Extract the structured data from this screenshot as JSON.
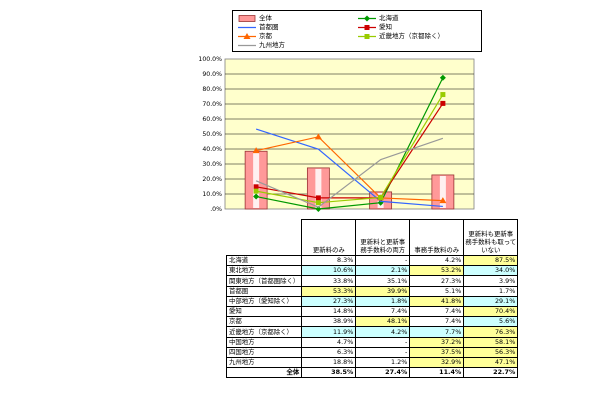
{
  "chart_data": {
    "type": "line",
    "categories": [
      "更新料のみ",
      "更新料と更新事務手数料の両方",
      "事務手数料のみ",
      "更新料も更新事務手数料も取っていない"
    ],
    "ylim": [
      0,
      100
    ],
    "yticks": [
      "100.0%",
      "90.0%",
      "80.0%",
      "70.0%",
      "60.0%",
      "50.0%",
      "40.0%",
      "30.0%",
      "20.0%",
      "10.0%",
      ".0%"
    ],
    "grid": true,
    "legend_position": "top",
    "bar_series": {
      "name": "全体",
      "values": [
        38.5,
        27.4,
        11.4,
        22.7
      ],
      "color": "#ff9999"
    },
    "series": [
      {
        "name": "北海道",
        "values": [
          8.3,
          0,
          4.2,
          87.5
        ],
        "color": "#009900",
        "marker": "diamond"
      },
      {
        "name": "首都圏",
        "values": [
          53.3,
          39.9,
          5.1,
          1.7
        ],
        "color": "#3366ff",
        "marker": "none"
      },
      {
        "name": "愛知",
        "values": [
          14.8,
          7.4,
          7.4,
          70.4
        ],
        "color": "#cc0000",
        "marker": "square"
      },
      {
        "name": "京都",
        "values": [
          38.9,
          48.1,
          7.4,
          5.6
        ],
        "color": "#ff6600",
        "marker": "triangle"
      },
      {
        "name": "近畿地方（京都除く）",
        "values": [
          11.9,
          4.2,
          7.7,
          76.3
        ],
        "color": "#99cc00",
        "marker": "square"
      },
      {
        "name": "九州地方",
        "values": [
          18.8,
          1.2,
          32.9,
          47.1
        ],
        "color": "#999999",
        "marker": "none"
      }
    ]
  },
  "table": {
    "headers": [
      "更新料のみ",
      "更新料と更新事務手数料の両方",
      "事務手数料のみ",
      "更新料も更新事務手数料も取っていない"
    ],
    "rows": [
      {
        "label": "北海道",
        "cells": [
          "8.3%",
          "-",
          "4.2%",
          "87.5%"
        ],
        "colors": [
          "wht",
          "wht",
          "wht",
          "yel"
        ]
      },
      {
        "label": "東北地方",
        "cells": [
          "10.6%",
          "2.1%",
          "53.2%",
          "34.0%"
        ],
        "colors": [
          "cyan",
          "cyan",
          "yel",
          "cyan"
        ]
      },
      {
        "label": "関東地方（首都圏除く）",
        "cells": [
          "33.8%",
          "35.1%",
          "27.3%",
          "3.9%"
        ],
        "colors": [
          "wht",
          "wht",
          "wht",
          "wht"
        ]
      },
      {
        "label": "首都圏",
        "cells": [
          "53.3%",
          "39.9%",
          "5.1%",
          "1.7%"
        ],
        "colors": [
          "yel",
          "yel",
          "wht",
          "wht"
        ]
      },
      {
        "label": "中部地方（愛知除く）",
        "cells": [
          "27.3%",
          "1.8%",
          "41.8%",
          "29.1%"
        ],
        "colors": [
          "cyan",
          "cyan",
          "yel",
          "cyan"
        ]
      },
      {
        "label": "愛知",
        "cells": [
          "14.8%",
          "7.4%",
          "7.4%",
          "70.4%"
        ],
        "colors": [
          "wht",
          "wht",
          "wht",
          "yel"
        ]
      },
      {
        "label": "京都",
        "cells": [
          "38.9%",
          "48.1%",
          "7.4%",
          "5.6%"
        ],
        "colors": [
          "wht",
          "yel",
          "wht",
          "cyan"
        ]
      },
      {
        "label": "近畿地方（京都除く）",
        "cells": [
          "11.9%",
          "4.2%",
          "7.7%",
          "76.3%"
        ],
        "colors": [
          "cyan",
          "cyan",
          "cyan",
          "yel"
        ]
      },
      {
        "label": "中国地方",
        "cells": [
          "4.7%",
          "-",
          "37.2%",
          "58.1%"
        ],
        "colors": [
          "wht",
          "wht",
          "yel",
          "yel"
        ]
      },
      {
        "label": "四国地方",
        "cells": [
          "6.3%",
          "-",
          "37.5%",
          "56.3%"
        ],
        "colors": [
          "wht",
          "wht",
          "yel",
          "yel"
        ]
      },
      {
        "label": "九州地方",
        "cells": [
          "18.8%",
          "1.2%",
          "32.9%",
          "47.1%"
        ],
        "colors": [
          "wht",
          "wht",
          "yel",
          "yel"
        ]
      }
    ],
    "total": {
      "label": "全体",
      "cells": [
        "38.5%",
        "27.4%",
        "11.4%",
        "22.7%"
      ]
    }
  }
}
